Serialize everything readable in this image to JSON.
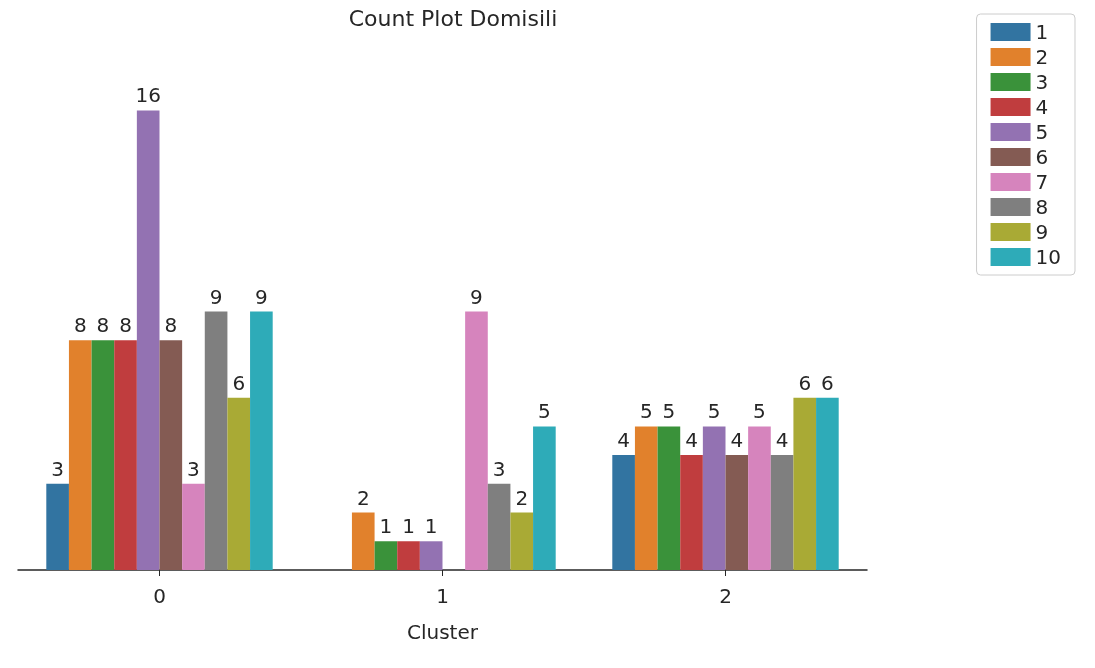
{
  "chart_data": {
    "type": "bar",
    "title": "Count Plot Domisili",
    "xlabel": "Cluster",
    "categories": [
      "0",
      "1",
      "2"
    ],
    "series": [
      {
        "name": "1",
        "color": "#3274a1",
        "values": [
          3,
          null,
          4
        ]
      },
      {
        "name": "2",
        "color": "#e1812c",
        "values": [
          8,
          2,
          5
        ]
      },
      {
        "name": "3",
        "color": "#3a923a",
        "values": [
          8,
          1,
          5
        ]
      },
      {
        "name": "4",
        "color": "#c03d3e",
        "values": [
          8,
          1,
          4
        ]
      },
      {
        "name": "5",
        "color": "#9372b2",
        "values": [
          16,
          1,
          5
        ]
      },
      {
        "name": "6",
        "color": "#845b53",
        "values": [
          8,
          null,
          4
        ]
      },
      {
        "name": "7",
        "color": "#d684bd",
        "values": [
          3,
          9,
          5
        ]
      },
      {
        "name": "8",
        "color": "#7f7f7f",
        "values": [
          9,
          3,
          4
        ]
      },
      {
        "name": "9",
        "color": "#a9aa35",
        "values": [
          6,
          2,
          6
        ]
      },
      {
        "name": "10",
        "color": "#2eabb8",
        "values": [
          9,
          5,
          6
        ]
      }
    ],
    "data_labels": true,
    "legend": "top right",
    "grid": false,
    "tick_labels": "x"
  }
}
